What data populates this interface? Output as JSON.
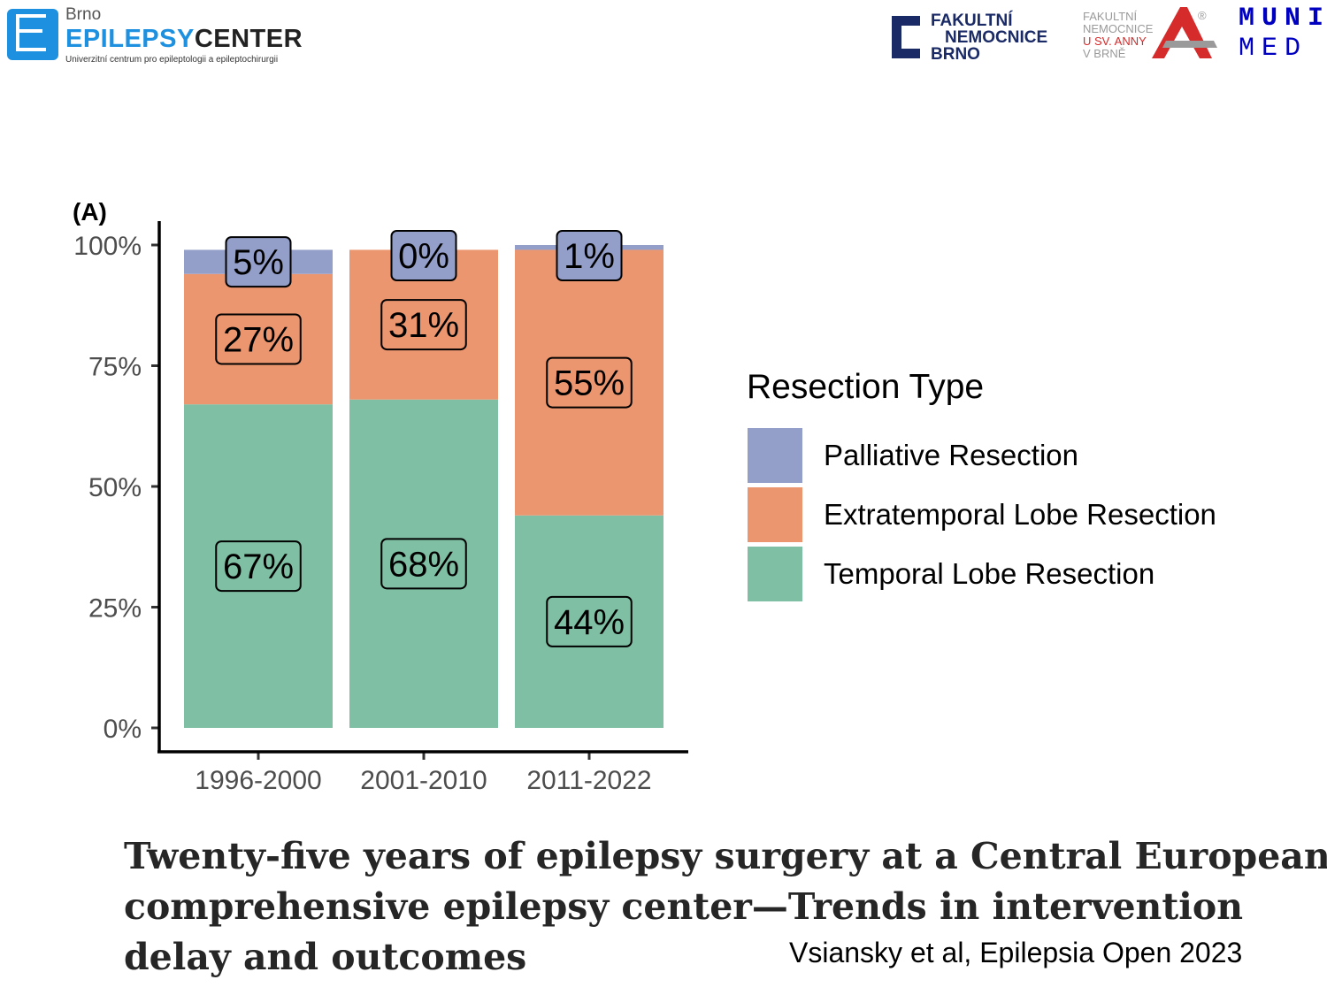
{
  "header": {
    "epilepsy_center": {
      "city": "Brno",
      "name_part1": "EPILEPSY",
      "name_part2": "CENTER",
      "subtitle": "Univerzitní centrum pro epileptologii a epileptochirurgii"
    },
    "fn_brno": {
      "line1": "FAKULTNÍ",
      "line2": "NEMOCNICE",
      "line3": "BRNO"
    },
    "fnusa": {
      "line1": "FAKULTNÍ",
      "line2": "NEMOCNICE",
      "line3": "U SV. ANNY",
      "line4": "V BRNĚ",
      "mark": "®"
    },
    "muni": {
      "line1": "MUNI",
      "line2": "MED"
    }
  },
  "chart_data": {
    "type": "bar",
    "stacked": true,
    "panel_tag": "(A)",
    "categories": [
      "1996-2000",
      "2001-2010",
      "2011-2022"
    ],
    "series": [
      {
        "name": "Temporal Lobe Resection",
        "values": [
          67,
          68,
          44
        ],
        "labels": [
          "67%",
          "68%",
          "44%"
        ],
        "color": "#7fbfa4"
      },
      {
        "name": "Extratemporal Lobe Resection",
        "values": [
          27,
          31,
          55
        ],
        "labels": [
          "27%",
          "31%",
          "55%"
        ],
        "color": "#ec9670"
      },
      {
        "name": "Palliative Resection",
        "values": [
          5,
          0,
          1
        ],
        "labels": [
          "5%",
          "0%",
          "1%"
        ],
        "color": "#949fc9"
      }
    ],
    "ylim": [
      0,
      100
    ],
    "yticks": [
      0,
      25,
      50,
      75,
      100
    ],
    "ytick_labels": [
      "0%",
      "25%",
      "50%",
      "75%",
      "100%"
    ],
    "xlabel": "",
    "ylabel": "",
    "grid": false,
    "legend": {
      "title": "Resection Type",
      "placement": "right",
      "items": [
        "Palliative Resection",
        "Extratemporal Lobe Resection",
        "Temporal Lobe Resection"
      ],
      "colors": [
        "#949fc9",
        "#ec9670",
        "#7fbfa4"
      ]
    }
  },
  "footer": {
    "title_lines": [
      "Twenty-five years of epilepsy surgery at a Central European",
      "comprehensive epilepsy center—Trends in intervention",
      "delay and outcomes"
    ],
    "citation": "Vsiansky et al, Epilepsia Open 2023"
  }
}
